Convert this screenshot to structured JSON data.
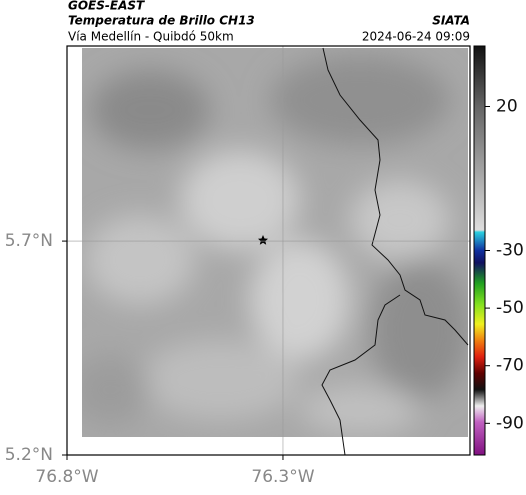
{
  "header": {
    "source": "GOES-EAST",
    "product": "Temperatura de Brillo CH13",
    "route": "Vía Medellín - Quibdó 50km",
    "org": "SIATA",
    "datetime": "2024-06-24 09:09"
  },
  "chart_data": {
    "type": "map",
    "xlim": [
      -76.8,
      -75.867
    ],
    "ylim": [
      5.2,
      6.156
    ],
    "xticks": [
      {
        "value": -76.8,
        "label": "76.8°W"
      },
      {
        "value": -76.3,
        "label": "76.3°W"
      }
    ],
    "yticks": [
      {
        "value": 5.2,
        "label": "5.2°N"
      },
      {
        "value": 5.7,
        "label": "5.7°N"
      }
    ],
    "grid": true,
    "colorbar": {
      "lim": [
        -101,
        41
      ],
      "ticks": [
        20,
        -30,
        -50,
        -70,
        -90
      ]
    }
  }
}
